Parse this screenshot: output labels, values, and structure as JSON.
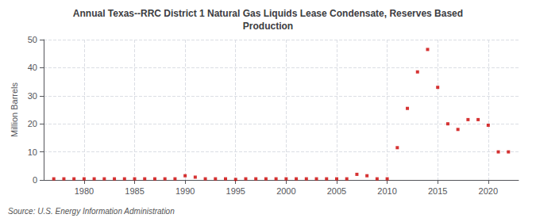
{
  "chart_data": {
    "type": "scatter",
    "title": "Annual Texas--RRC District 1 Natural Gas Liquids Lease Condensate, Reserves Based\nProduction",
    "ylabel": "Million Barrels",
    "annotation": "Source: U.S. Energy Information Administration",
    "color": "#cc0000",
    "marker": "square",
    "grid": true,
    "x": [
      1977,
      1978,
      1979,
      1980,
      1981,
      1982,
      1983,
      1984,
      1985,
      1986,
      1987,
      1988,
      1989,
      1990,
      1991,
      1992,
      1993,
      1994,
      1995,
      1996,
      1997,
      1998,
      1999,
      2000,
      2001,
      2002,
      2003,
      2004,
      2005,
      2006,
      2007,
      2008,
      2009,
      2010,
      2011,
      2012,
      2013,
      2014,
      2015,
      2016,
      2017,
      2018,
      2019,
      2020,
      2021,
      2022
    ],
    "values": [
      0.4,
      0.4,
      0.4,
      0.4,
      0.4,
      0.4,
      0.4,
      0.4,
      0.4,
      0.4,
      0.4,
      0.4,
      0.4,
      1.5,
      1.0,
      0.4,
      0.4,
      0.4,
      0.2,
      0.4,
      0.4,
      0.4,
      0.4,
      0.4,
      0.4,
      0.4,
      0.4,
      0.4,
      0.4,
      0.4,
      2.0,
      1.5,
      0.4,
      0.4,
      11.5,
      25.5,
      38.5,
      46.5,
      33.0,
      20.0,
      18.0,
      21.5,
      21.5,
      19.5,
      10.0,
      10.0
    ],
    "xlim": [
      1976,
      2023
    ],
    "ylim": [
      0,
      50
    ],
    "yticks": [
      0,
      10,
      20,
      30,
      40,
      50
    ],
    "xticks": [
      1980,
      1985,
      1990,
      1995,
      2000,
      2005,
      2010,
      2015,
      2020
    ]
  }
}
